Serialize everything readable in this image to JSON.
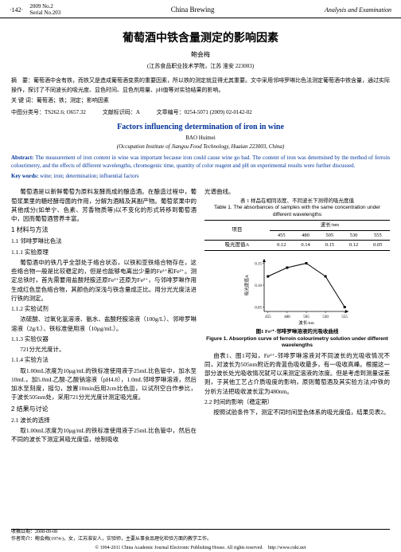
{
  "header": {
    "page": "·142·",
    "year_issue": "2009 No.2",
    "serial": "Serial No.203",
    "journal": "China Brewing",
    "section": "Analysis and Examination"
  },
  "title_ch": "葡萄酒中铁含量测定的影响因素",
  "author_ch": "鲍会梅",
  "affil_ch": "(江苏食品职业技术学院，江苏 淮安 223003)",
  "abstract_ch_label": "摘　要：",
  "abstract_ch": "葡萄酒中含有铁，而铁又是造成葡萄酒变质的重要因素，所以铁的测定就显得尤其重要。文中采用邻啡罗啉比色法测定葡萄酒中铁含量，通过实际操作，探讨了不同波长的吸光度、显色时间、显色剂用量、pH值等对实验结果的影响。",
  "keywords_ch_label": "关 键 词：",
  "keywords_ch": "葡萄酒；铁；测定；影响因素",
  "class_line": "中图分类号：TS262.6; O657.32　　　文献标识码：A　　　文章编号：0254-5071 (2009) 02-0142-02",
  "title_en": "Factors influencing determination of iron in wine",
  "author_en": "BAO Huimei",
  "affil_en": "(Occupation Institute of Jiangsu Food Technology, Huaian 223003, China)",
  "abstract_en_label": "Abstract:",
  "abstract_en": " The measurement of iron content in wine was important because iron could cause wine go bad. The content of iron was determined by the method of ferroin colourimetry, and the effects of different wavelengths, chromogenic time, quantity of color reagent and pH on experimental results were further discussed.",
  "keywords_en_label": "Key words:",
  "keywords_en": " wine; iron; determination; influential factors",
  "left_col": {
    "intro": "葡萄酒是以新鲜葡萄为原料发酵而成的酿造酒。在酿造过程中，葡萄浆果里的糖经酵母菌的作用，分解为酒精及其副产物。葡萄浆果中的其他成分(如单宁、色素、芳香物质等)以不变化的形式转移到葡萄酒中，因而葡萄酒营养丰富。",
    "s1": "1 材料与方法",
    "s11": "1.1 邻啡罗啉比色法",
    "s111": "1.1.1 实验原理",
    "p111": "葡萄酒中的铁几乎全部处于络合状态，以铁和亚铁络合物存在，这些络合物一般是比较稳定的，但是也能够电离出少量的Fe³⁺和Fe²⁺。测定总铁时，首先需要用盐酸羟胺还原Fe³⁺还原为Fe²⁺，与邻啡罗啉作用生成红色显色络合物，其颜色的深浅与铁含量成正比。用分光光度法进行铁的测定。",
    "s112": "1.1.2 实验试剂",
    "p112": "浓硫酸、过氧化氢溶液、氨水、盐酸羟胺溶液（100g/L）、邻啡罗啉溶液（2g/L）、铁标准使用液（10μg/mL）。",
    "s113": "1.1.3 实验仪器",
    "p113": "721分光光度计。",
    "s114": "1.1.4 实验方法",
    "p114a": "取1.00mL浓度为10μg/mL的铁标准使用液于25mL比色管中，加水至10mL，加5.0mL乙酸-乙酸钠溶液（pH4.8），1.0mL邻啡罗啉溶液，然后加水至刻度，摇匀，放置10min后用2cm比色皿，以试剂空白作参比，于波长505nm处，采用721分光光度计测定吸光度。",
    "s2": "2 结果与讨论",
    "s21": "2.1 波长的选择",
    "p21": "取1.00mL浓度为10μg/mL的铁标准使用液于25mL比色管中，然后在不同的波长下测定其吸光度值，绘制吸收",
    "footer_end": "光谱曲线。"
  },
  "table1": {
    "caption_ch": "表 1 样品在相同浓度、不同波长下测得的吸光度值",
    "caption_en": "Table 1. The absorbances of samples with the same concentration under different wavelengths",
    "row_head": "项目",
    "col_head": "波长/nm",
    "wavelengths": [
      "455",
      "480",
      "505",
      "530",
      "555"
    ],
    "label": "吸光度值A",
    "values": [
      "0.12",
      "0.14",
      "0.15",
      "0.12",
      "0.05"
    ]
  },
  "chart": {
    "xlabel": "波长/nm",
    "ylabel": "吸光度值A",
    "xticks": [
      "455",
      "480",
      "505",
      "530",
      "555"
    ],
    "yticks": [
      "0.05",
      "0.10",
      "0.15"
    ],
    "points_x": [
      455,
      480,
      505,
      530,
      555
    ],
    "points_y": [
      0.12,
      0.14,
      0.15,
      0.12,
      0.05
    ],
    "xlim": [
      450,
      560
    ],
    "ylim": [
      0.04,
      0.16
    ],
    "line_color": "#000000",
    "bg": "#ffffff",
    "width": 140,
    "height": 90,
    "caption_ch": "图1 Fe²⁺-邻啡罗啉溶液的光吸收曲线",
    "caption_en": "Figure 1. Absorption curve of ferroin colourimetry solution under different wavelengths"
  },
  "right_col": {
    "p_after_fig": "由表1、图1可知，Fe²⁺-邻啡罗啉溶液对不同波长的光吸收情况不同，对波长为505nm附近的青蓝色吸收最多，有一吸收高峰。根据这一部分波长处光吸收情况就可以来测定溶液的浓度。但是考虑到测量误差则，于其他工艺占介质吸度的影响，原则葡萄酒及其实验方法)中铁的分析方法把吸收波长定为480nm。",
    "s22": "2.2 时间的影响（稳定期）",
    "p22": "按照试验条件下，测定不同时间显色体系的吸光度值，结果见表2。"
  },
  "footnote": {
    "recv": "收稿日期：2008-09-08",
    "author": "作者简介：鲍会梅(1974-)，女，江苏淮安人，实验师，主要从事食品理化检验方面的教学工作。"
  },
  "copyright": "© 1994-2011 China Academic Journal Electronic Publishing House. All rights reserved.　http://www.cnki.net"
}
